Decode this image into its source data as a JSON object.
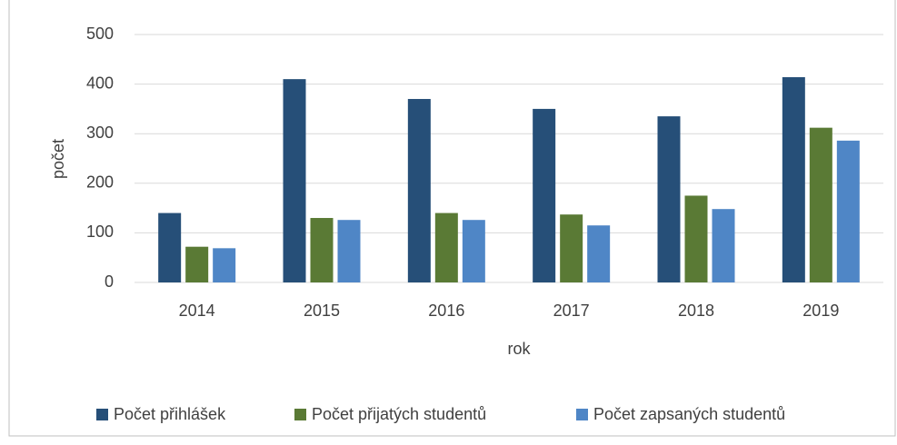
{
  "chart_data": {
    "type": "bar",
    "categories": [
      "2014",
      "2015",
      "2016",
      "2017",
      "2018",
      "2019"
    ],
    "series": [
      {
        "name": "Počet přihlášek",
        "color": "#264f78",
        "values": [
          140,
          410,
          370,
          350,
          335,
          414
        ]
      },
      {
        "name": "Počet přijatých studentů",
        "color": "#5a7a35",
        "values": [
          72,
          130,
          140,
          137,
          175,
          312
        ]
      },
      {
        "name": "Počet zapsaných studentů",
        "color": "#4f86c6",
        "values": [
          69,
          126,
          126,
          115,
          148,
          286
        ]
      }
    ],
    "x_label": "rok",
    "y_label": "počet",
    "ylim": [
      0,
      500
    ],
    "yticks": [
      0,
      100,
      200,
      300,
      400,
      500
    ],
    "grid": true,
    "legend": "bottom"
  }
}
